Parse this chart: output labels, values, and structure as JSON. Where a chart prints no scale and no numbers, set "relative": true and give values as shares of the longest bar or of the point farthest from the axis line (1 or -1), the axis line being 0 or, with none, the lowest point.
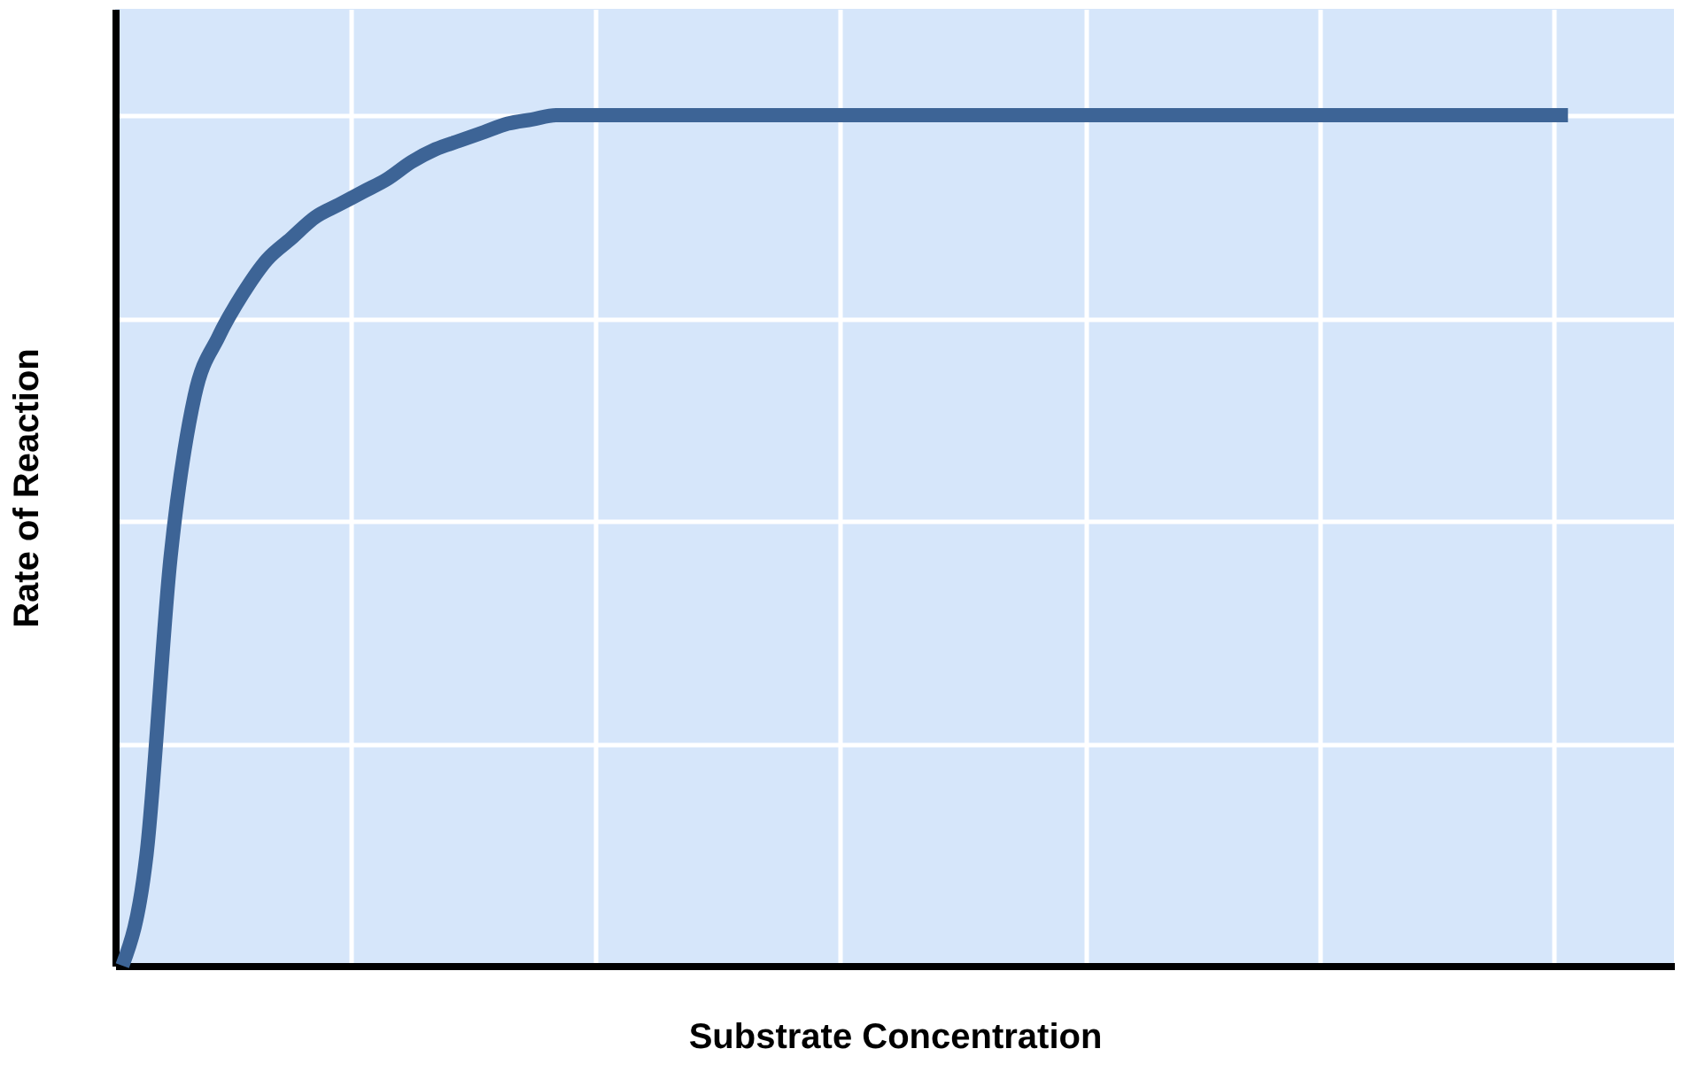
{
  "chart_data": {
    "type": "line",
    "relative": true,
    "xlabel": "Substrate Concentration",
    "ylabel": "Rate of Reaction",
    "grid": true,
    "color": "#3d6496",
    "line_style": "solid",
    "marker": "none",
    "categories": [
      null,
      null,
      null,
      null,
      null,
      null,
      null,
      null,
      null,
      null,
      null,
      null,
      null,
      null,
      null,
      null,
      null,
      null,
      null,
      null,
      null,
      null,
      null,
      null,
      null,
      null,
      null,
      null,
      null,
      null,
      null,
      null,
      null,
      null,
      null,
      null,
      null,
      null,
      null,
      null,
      null,
      null,
      null,
      null,
      null,
      null,
      null,
      null,
      null,
      null,
      null,
      null,
      null,
      null,
      null,
      null,
      null,
      null,
      null,
      null,
      null
    ],
    "values": [
      0,
      0.13,
      0.48,
      0.67,
      0.74,
      0.79,
      0.83,
      0.855,
      0.88,
      0.895,
      0.91,
      0.925,
      0.945,
      0.96,
      0.97,
      0.98,
      0.99,
      0.995,
      1,
      1,
      1,
      1,
      1,
      1,
      1,
      1,
      1,
      1,
      1,
      1,
      1,
      1,
      1,
      1,
      1,
      1,
      1,
      1,
      1,
      1,
      1,
      1,
      1,
      1,
      1,
      1,
      1,
      1,
      1,
      1,
      1,
      1,
      1,
      1,
      1,
      1,
      1,
      1,
      1,
      1,
      1
    ]
  }
}
